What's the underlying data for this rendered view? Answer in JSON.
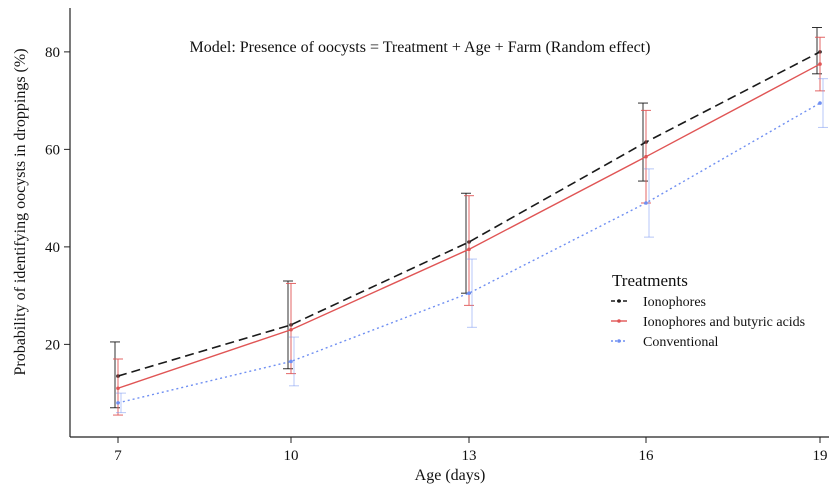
{
  "chart_data": {
    "type": "line",
    "annotation": "Model: Presence of oocysts = Treatment + Age + Farm (Random effect)",
    "xlabel": "Age (days)",
    "ylabel": "Probability of identifying oocysts in droppings (%)",
    "x": [
      7,
      10,
      13,
      16,
      19
    ],
    "x_tick_labels": [
      "7",
      "10",
      "13",
      "16",
      "19"
    ],
    "y_ticks": [
      20,
      40,
      60,
      80
    ],
    "ylim": [
      1,
      89
    ],
    "grid": false,
    "legend": {
      "title": "Treatments",
      "placement": "right"
    },
    "series": [
      {
        "name": "Ionophores",
        "color": "#1a1a1a",
        "line_style": "dashed",
        "values": [
          13.5,
          24,
          41,
          61.5,
          80
        ],
        "lower": [
          7,
          15,
          30.5,
          53.5,
          75.5
        ],
        "upper": [
          20.5,
          33,
          51,
          69.5,
          85
        ]
      },
      {
        "name": "Ionophores and butyric acids",
        "color": "#e05555",
        "line_style": "solid",
        "values": [
          11,
          23,
          39.5,
          58.5,
          77.5
        ],
        "lower": [
          5.5,
          14,
          28,
          49,
          72
        ],
        "upper": [
          17,
          32.5,
          50.5,
          68,
          83
        ]
      },
      {
        "name": "Conventional",
        "color": "#6f8ff2",
        "line_style": "dotted",
        "values": [
          8,
          16.5,
          30.5,
          49,
          69.5
        ],
        "lower": [
          6,
          11.5,
          23.5,
          42,
          64.5
        ],
        "upper": [
          10,
          21.5,
          37.5,
          56,
          74.5
        ]
      }
    ]
  }
}
